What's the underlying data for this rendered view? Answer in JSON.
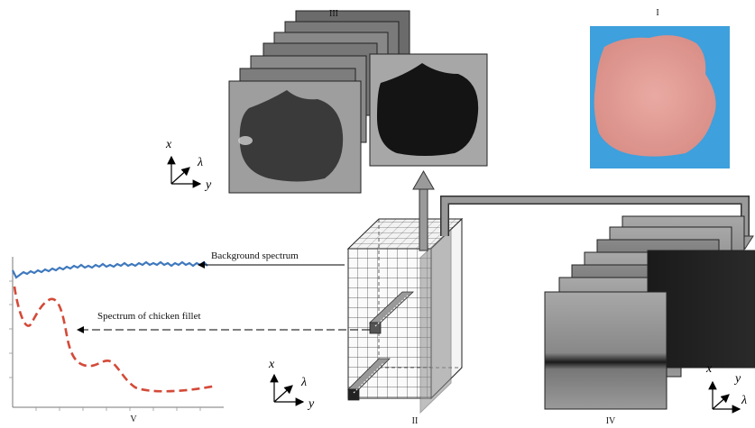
{
  "panels": {
    "I": "I",
    "II": "II",
    "III": "III",
    "IV": "IV",
    "V": "V"
  },
  "annotations": {
    "background_spectrum": "Background spectrum",
    "chicken_spectrum": "Spectrum of chicken fillet"
  },
  "axes": {
    "x": "x",
    "y": "y",
    "lambda": "λ"
  },
  "colors": {
    "background_curve": "#3e78bd",
    "chicken_curve": "#d44a38",
    "arrow_fill": "#999999",
    "photo_bg": "#3ea0dc",
    "fillet": "#e6a59f"
  }
}
